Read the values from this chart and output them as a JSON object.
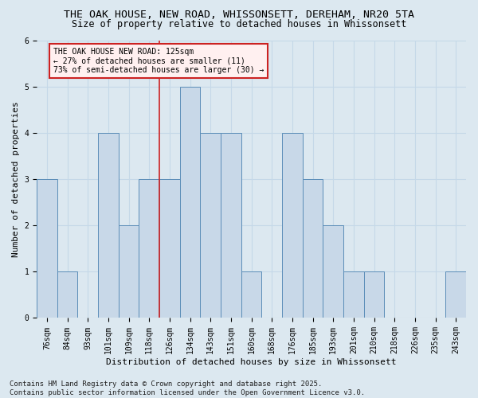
{
  "title": "THE OAK HOUSE, NEW ROAD, WHISSONSETT, DEREHAM, NR20 5TA",
  "subtitle": "Size of property relative to detached houses in Whissonsett",
  "xlabel": "Distribution of detached houses by size in Whissonsett",
  "ylabel": "Number of detached properties",
  "categories": [
    "76sqm",
    "84sqm",
    "93sqm",
    "101sqm",
    "109sqm",
    "118sqm",
    "126sqm",
    "134sqm",
    "143sqm",
    "151sqm",
    "160sqm",
    "168sqm",
    "176sqm",
    "185sqm",
    "193sqm",
    "201sqm",
    "210sqm",
    "218sqm",
    "226sqm",
    "235sqm",
    "243sqm"
  ],
  "values": [
    3,
    1,
    0,
    4,
    2,
    3,
    3,
    5,
    4,
    4,
    1,
    0,
    4,
    3,
    2,
    1,
    1,
    0,
    0,
    0,
    1
  ],
  "bar_color": "#c8d8e8",
  "bar_edge_color": "#5b8db8",
  "annotation_text_line1": "THE OAK HOUSE NEW ROAD: 125sqm",
  "annotation_text_line2": "← 27% of detached houses are smaller (11)",
  "annotation_text_line3": "73% of semi-detached houses are larger (30) →",
  "annotation_box_facecolor": "#fff0f0",
  "annotation_box_edgecolor": "#cc2222",
  "red_line_color": "#cc2222",
  "ylim": [
    0,
    6
  ],
  "yticks": [
    0,
    1,
    2,
    3,
    4,
    5,
    6
  ],
  "grid_color": "#c5d8e8",
  "bg_color": "#dce8f0",
  "footer_line1": "Contains HM Land Registry data © Crown copyright and database right 2025.",
  "footer_line2": "Contains public sector information licensed under the Open Government Licence v3.0.",
  "title_fontsize": 9.5,
  "subtitle_fontsize": 8.5,
  "axis_label_fontsize": 8,
  "tick_fontsize": 7,
  "annotation_fontsize": 7,
  "footer_fontsize": 6.5
}
